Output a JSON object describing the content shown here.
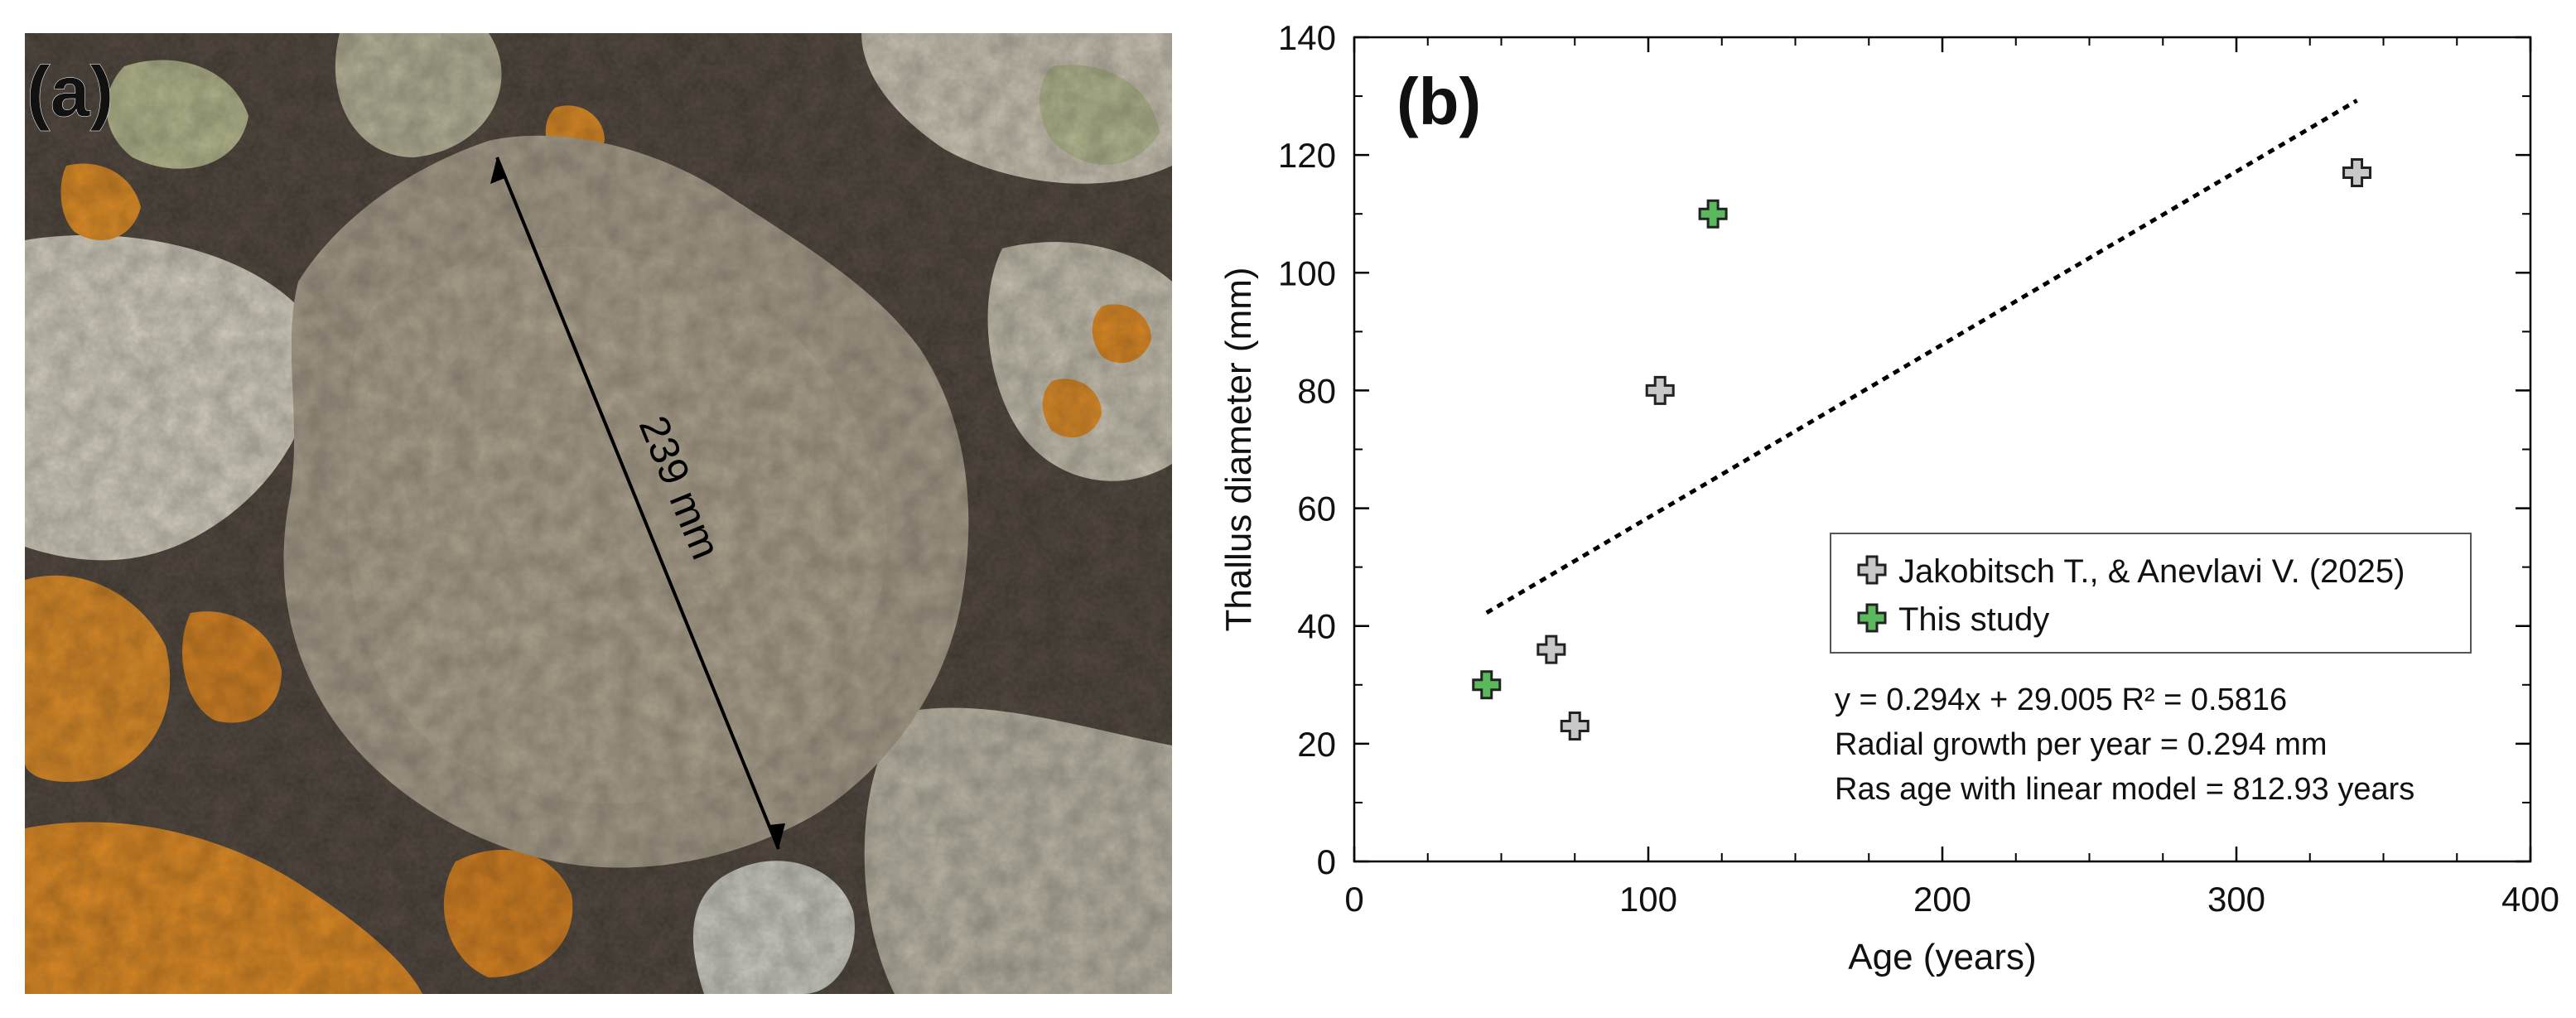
{
  "panels": {
    "a": {
      "label": "(a)",
      "measurement_label": "239 mm"
    },
    "b": {
      "label": "(b)"
    }
  },
  "chart_data": {
    "type": "scatter",
    "xlabel": "Age (years)",
    "ylabel": "Thallus diameter (mm)",
    "xlim": [
      0,
      400
    ],
    "ylim": [
      0,
      140
    ],
    "xticks": [
      0,
      100,
      200,
      300,
      400
    ],
    "yticks": [
      0,
      20,
      40,
      60,
      80,
      100,
      120,
      140
    ],
    "grid": false,
    "legend_position": "bottom-right",
    "marker": "plus",
    "series": [
      {
        "name": "Jakobitsch T., & Anevlavi V. (2025)",
        "color": "#c8c8c8",
        "points": [
          {
            "x": 67,
            "y": 36
          },
          {
            "x": 75,
            "y": 23
          },
          {
            "x": 104,
            "y": 80
          },
          {
            "x": 341,
            "y": 117
          }
        ]
      },
      {
        "name": "This study",
        "color": "#5cb85c",
        "points": [
          {
            "x": 45,
            "y": 30
          },
          {
            "x": 122,
            "y": 110
          }
        ]
      }
    ],
    "trendline": {
      "slope": 0.294,
      "intercept": 29.005,
      "x_range": [
        45,
        341
      ],
      "style": "dotted",
      "color": "#000000"
    },
    "annotations": [
      "y = 0.294x + 29.005 R² = 0.5816",
      "Radial growth per year = 0.294 mm",
      "Ras age with linear model = 812.93 years"
    ]
  }
}
